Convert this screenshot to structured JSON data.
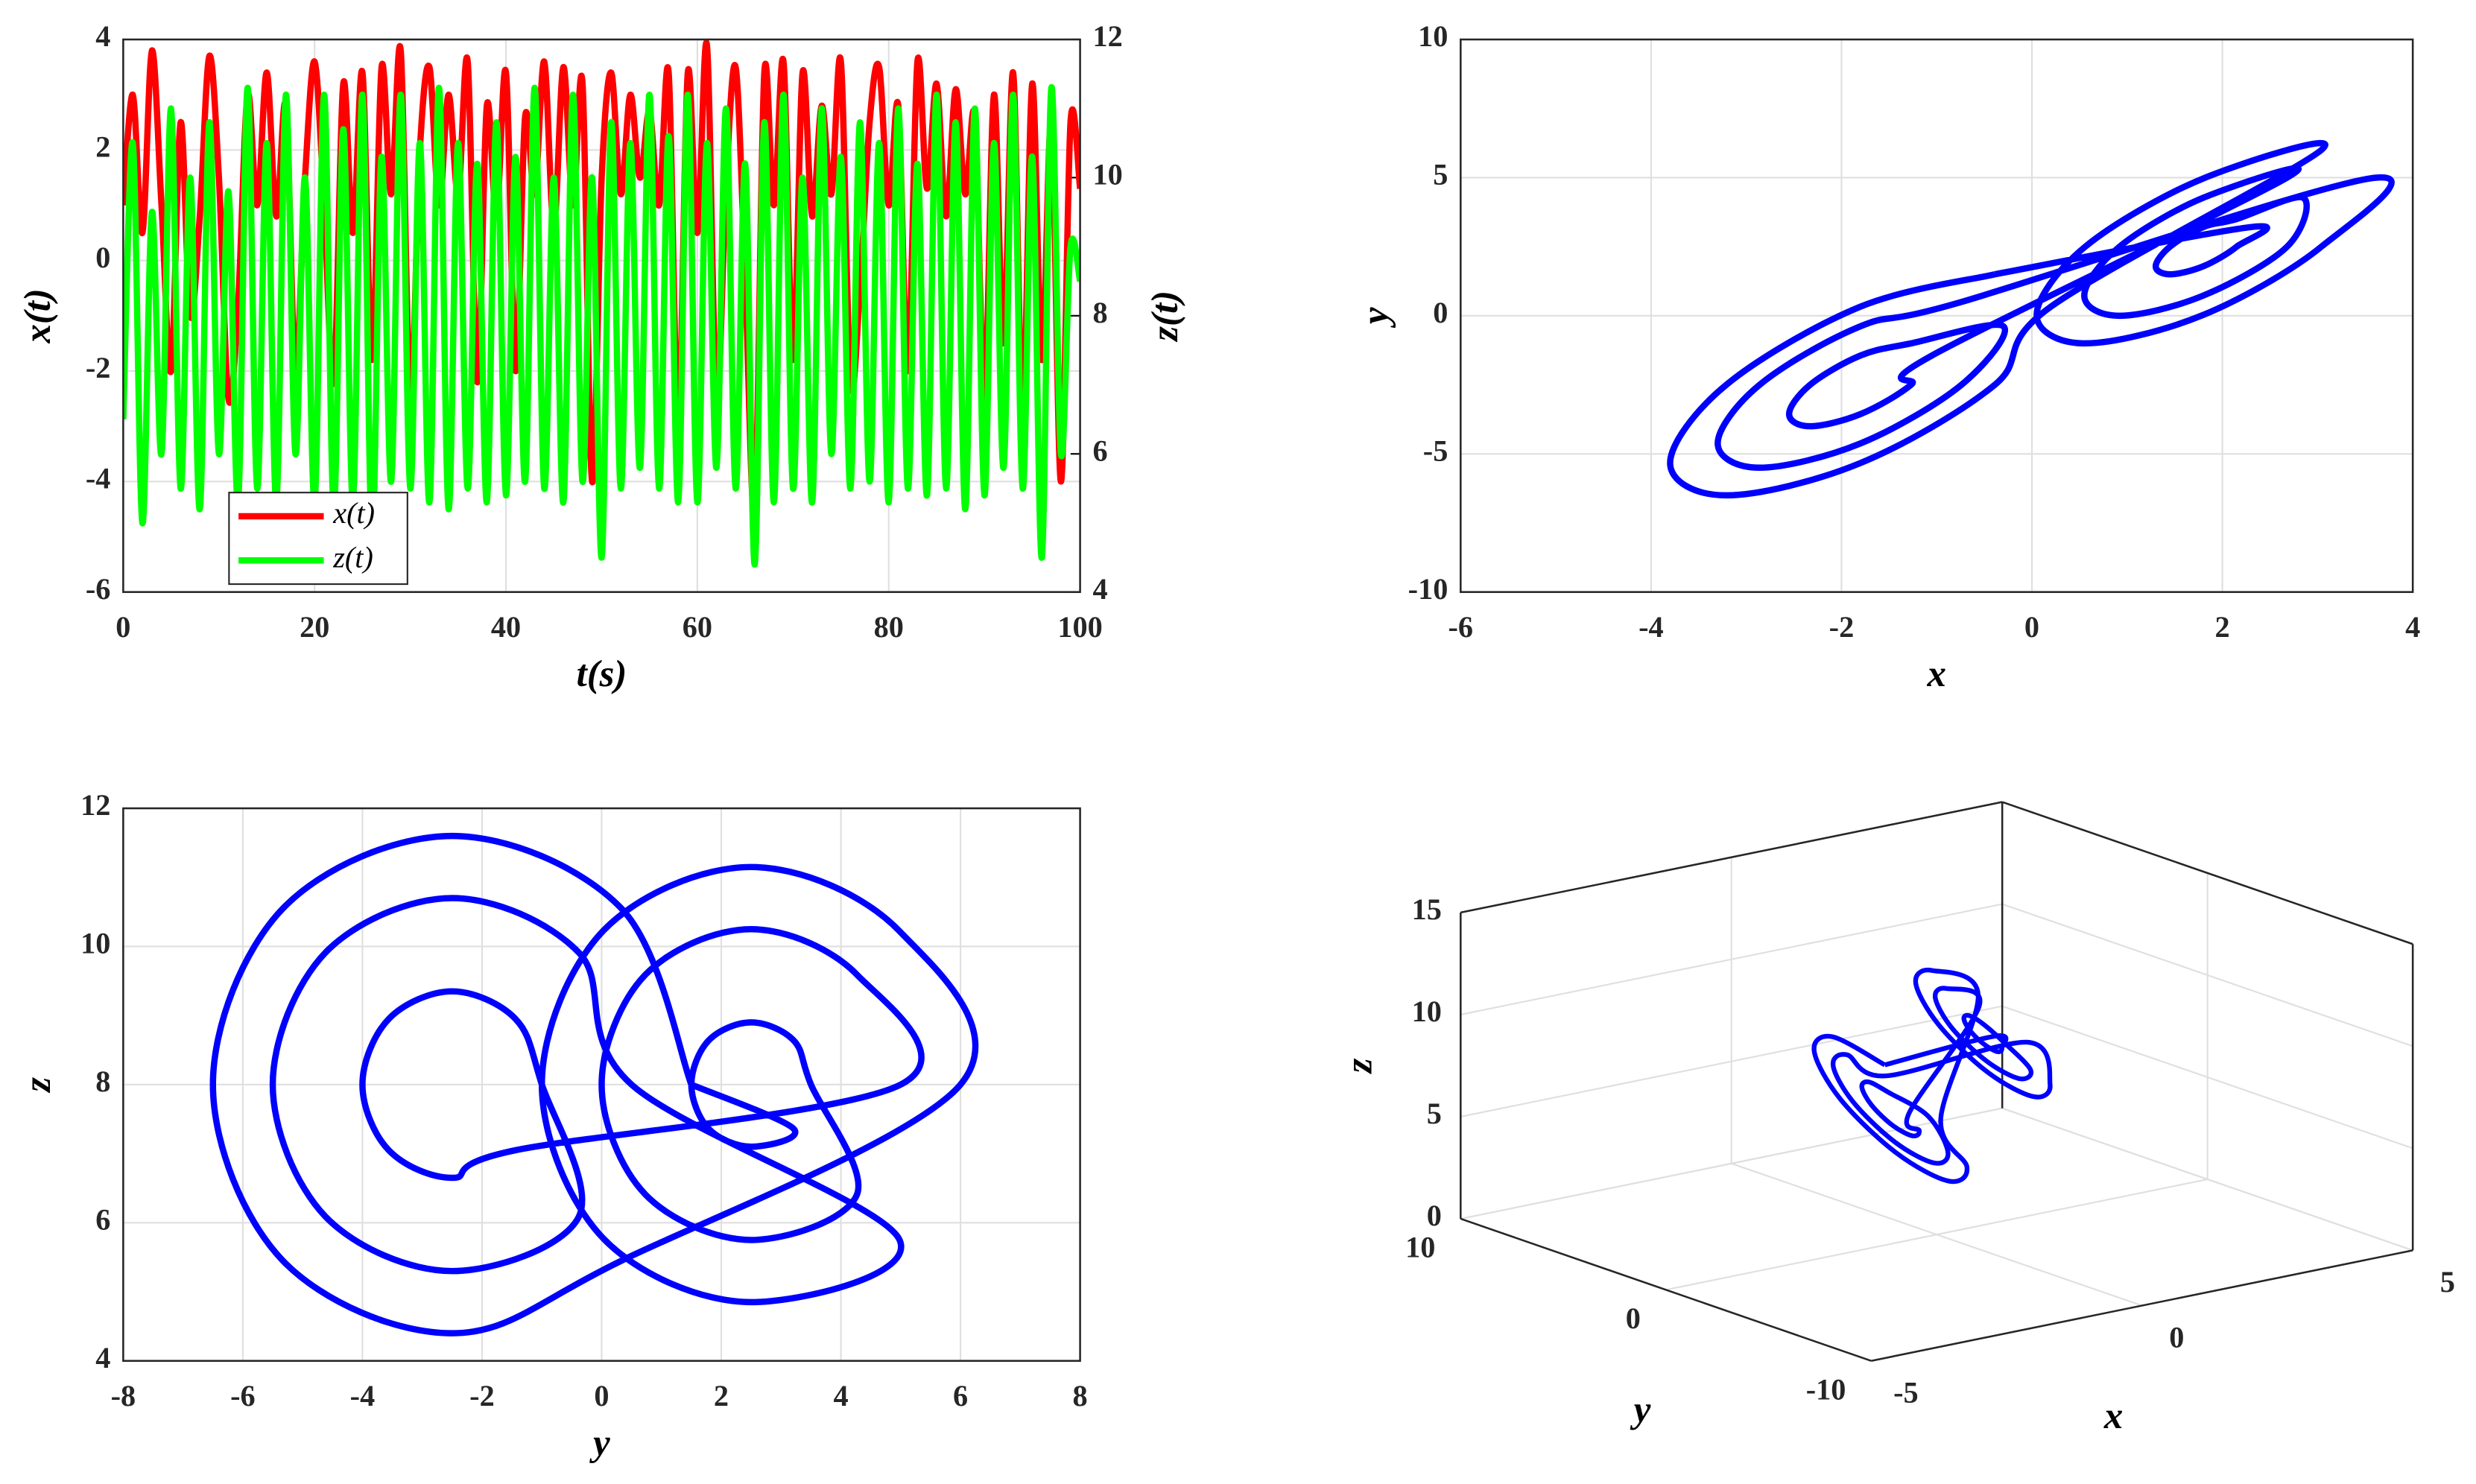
{
  "chart_data": [
    {
      "type": "timeseries",
      "xlabel": "t(s)",
      "ylabel": "x(t)",
      "y2label": "z(t)",
      "xlim": [
        0,
        100
      ],
      "xticks": [
        0,
        20,
        40,
        60,
        80,
        100
      ],
      "ylim": [
        -6,
        4
      ],
      "yticks": [
        -6,
        -4,
        -2,
        0,
        2,
        4
      ],
      "y2lim": [
        4,
        12
      ],
      "y2ticks": [
        4,
        6,
        8,
        10,
        12
      ],
      "grid": true,
      "legend": "lower left",
      "x": [
        0,
        1,
        2,
        3,
        4,
        5,
        6,
        7,
        8,
        9,
        10,
        11,
        12,
        13,
        14,
        15,
        16,
        17,
        18,
        19,
        20,
        21,
        22,
        23,
        24,
        25,
        26,
        27,
        28,
        29,
        30,
        31,
        32,
        33,
        34,
        35,
        36,
        37,
        38,
        39,
        40,
        41,
        42,
        43,
        44,
        45,
        46,
        47,
        48,
        49,
        50,
        51,
        52,
        53,
        54,
        55,
        56,
        57,
        58,
        59,
        60,
        61,
        62,
        63,
        64,
        65,
        66,
        67,
        68,
        69,
        70,
        71,
        72,
        73,
        74,
        75,
        76,
        77,
        78,
        79,
        80,
        81,
        82,
        83,
        84,
        85,
        86,
        87,
        88,
        89,
        90,
        91,
        92,
        93,
        94,
        95,
        96,
        97,
        98,
        99,
        100
      ],
      "series": [
        {
          "name": "x(t)",
          "color": "#ff0000",
          "values": [
            1,
            3,
            0.5,
            3.8,
            1,
            -2,
            2.5,
            -1,
            0.8,
            3.7,
            1.5,
            -2.5,
            -0.8,
            3,
            1,
            3.4,
            0.8,
            2.8,
            -2,
            1.5,
            3.6,
            1,
            -2.2,
            3.2,
            0.5,
            3.4,
            -1.8,
            3.5,
            1.2,
            3.8,
            -2.5,
            2,
            3.5,
            1,
            3,
            1.2,
            3.6,
            -2.2,
            2.8,
            0.8,
            3.4,
            -2,
            2.6,
            1.2,
            3.6,
            0.6,
            3.5,
            1,
            3.2,
            -4,
            1.5,
            3.4,
            1.2,
            3,
            1.5,
            2.7,
            1,
            3.4,
            -3,
            3.4,
            0.5,
            3.9,
            -2.5,
            1.4,
            3.5,
            -0.3,
            -4.5,
            3.4,
            1,
            3.6,
            -1.8,
            3.4,
            0.8,
            2.8,
            1.2,
            3.6,
            -2.2,
            -0.5,
            2.5,
            3.5,
            1,
            2.8,
            -2,
            3.6,
            1.3,
            3.2,
            0.8,
            3.1,
            1.2,
            2.6,
            -2.5,
            3,
            -1.5,
            3.4,
            -2.8,
            3.2,
            -1.8,
            2.5,
            -4,
            2.5,
            1.3
          ]
        },
        {
          "name": "z(t)",
          "color": "#00ff00",
          "axis": "y2",
          "values": [
            6.5,
            10.5,
            5,
            9.5,
            6,
            11,
            5.5,
            10,
            5.2,
            10.8,
            6,
            9.8,
            5.3,
            11.3,
            5.5,
            10.5,
            5.3,
            11.2,
            6,
            10,
            5.3,
            11.2,
            5.2,
            10.7,
            5.3,
            11.2,
            4.8,
            10.3,
            5.6,
            11.2,
            5.5,
            10.5,
            5.3,
            11.3,
            5.2,
            10.5,
            5.5,
            10.2,
            5.3,
            10.8,
            5.4,
            10.3,
            5.6,
            11.3,
            5.5,
            10,
            5.3,
            11.2,
            5.6,
            10,
            4.5,
            10.8,
            5.5,
            10.5,
            5.8,
            11.2,
            5.5,
            10.6,
            5.3,
            11.2,
            5.3,
            10.5,
            5.8,
            11,
            5.5,
            10.2,
            4.4,
            10.8,
            5.3,
            11.2,
            5.5,
            10,
            5.3,
            11,
            6,
            10.3,
            5.5,
            10.8,
            5.6,
            10.5,
            5.3,
            11,
            5.5,
            10.2,
            5.4,
            11.2,
            5.5,
            10.8,
            5.2,
            11,
            5.4,
            10.5,
            5.8,
            11.2,
            5.5,
            10.3,
            4.5,
            11.3,
            6,
            9,
            8.5
          ]
        }
      ]
    },
    {
      "type": "line",
      "xlabel": "x",
      "ylabel": "y",
      "color": "#0000ff",
      "grid": true,
      "xlim": [
        -6,
        4
      ],
      "xticks": [
        -6,
        -4,
        -2,
        0,
        2,
        4
      ],
      "ylim": [
        -10,
        10
      ],
      "yticks": [
        -10,
        -5,
        0,
        5,
        10
      ],
      "x": [
        -0.39,
        -1.8,
        -3.21,
        -3.8,
        -3.21,
        -1.8,
        -0.39,
        0.2,
        3.04,
        1.8,
        0.56,
        0.05,
        0.56,
        1.8,
        3.04,
        3.55,
        -0.74,
        -1.8,
        -2.86,
        -3.3,
        -2.86,
        -1.8,
        -0.74,
        -0.3,
        -1.27,
        -1.8,
        -2.33,
        -2.55,
        -2.33,
        -1.8,
        -1.27,
        -1.05,
        2.68,
        1.8,
        0.92,
        0.55,
        0.92,
        1.8,
        2.68,
        2.85,
        2.15,
        1.8,
        1.45,
        1.3,
        1.45,
        1.8,
        2.15,
        2.3,
        -0.39
      ],
      "values": [
        1.5,
        0.33,
        -2.5,
        -5.33,
        -6.5,
        -5.33,
        -2.5,
        0.33,
        6,
        4.97,
        2.5,
        0.03,
        -1,
        0.03,
        2.5,
        4.97,
        0.5,
        -0.38,
        -2.5,
        -4.62,
        -5.5,
        -4.62,
        -2.5,
        -0.38,
        -1,
        -1.44,
        -2.5,
        -3.56,
        -4,
        -3.56,
        -2.5,
        -1.44,
        5,
        4.27,
        2.5,
        0.73,
        0,
        0.73,
        2.5,
        4.27,
        3.5,
        3.21,
        2.5,
        1.79,
        1.5,
        1.79,
        2.5,
        3.21,
        1.5
      ]
    },
    {
      "type": "line",
      "xlabel": "y",
      "ylabel": "z",
      "color": "#0000ff",
      "grid": true,
      "xlim": [
        -8,
        8
      ],
      "xticks": [
        -8,
        -6,
        -4,
        -2,
        0,
        2,
        4,
        6,
        8
      ],
      "ylim": [
        4,
        12
      ],
      "yticks": [
        4,
        6,
        8,
        10,
        12
      ],
      "x": [
        1.5,
        0.33,
        -2.5,
        -5.33,
        -6.5,
        -5.33,
        -2.5,
        0.33,
        6,
        4.97,
        2.5,
        0.03,
        -1,
        0.03,
        2.5,
        4.97,
        0.5,
        -0.38,
        -2.5,
        -4.62,
        -5.5,
        -4.62,
        -2.5,
        -0.38,
        -1,
        -1.44,
        -2.5,
        -3.56,
        -4,
        -3.56,
        -2.5,
        -1.44,
        5,
        4.27,
        2.5,
        0.73,
        0,
        0.73,
        2.5,
        4.27,
        3.5,
        3.21,
        2.5,
        1.79,
        1.5,
        1.79,
        2.5,
        3.21,
        1.5
      ],
      "values": [
        8,
        10.55,
        11.6,
        10.55,
        8,
        5.45,
        4.4,
        5.45,
        8,
        10.23,
        11.15,
        10.23,
        8,
        5.77,
        4.85,
        5.77,
        8,
        9.91,
        10.7,
        9.91,
        8,
        6.09,
        5.3,
        6.09,
        8,
        8.95,
        9.35,
        8.95,
        8,
        7.05,
        6.65,
        7.05,
        8,
        9.59,
        10.25,
        9.59,
        8,
        6.41,
        5.75,
        6.41,
        8,
        8.64,
        8.9,
        8.64,
        8,
        7.36,
        7.1,
        7.36,
        8
      ]
    },
    {
      "type": "line3d",
      "xlabel": "x",
      "ylabel": "y",
      "zlabel": "z",
      "color": "#0000ff",
      "grid": true,
      "xlim": [
        -5,
        5
      ],
      "xticks": [
        -5,
        0,
        5
      ],
      "ylim": [
        -10,
        10
      ],
      "yticks": [
        -10,
        0,
        10
      ],
      "zlim": [
        0,
        15
      ],
      "zticks": [
        0,
        5,
        10,
        15
      ],
      "x": [
        -0.39,
        -1.8,
        -3.21,
        -3.8,
        -3.21,
        -1.8,
        -0.39,
        0.2,
        3.04,
        1.8,
        0.56,
        0.05,
        0.56,
        1.8,
        3.04,
        3.55,
        -0.74,
        -1.8,
        -2.86,
        -3.3,
        -2.86,
        -1.8,
        -0.74,
        -0.3,
        -1.27,
        -1.8,
        -2.33,
        -2.55,
        -2.33,
        -1.8,
        -1.27,
        -1.05,
        2.68,
        1.8,
        0.92,
        0.55,
        0.92,
        1.8,
        2.68,
        2.85,
        2.15,
        1.8,
        1.45,
        1.3,
        1.45,
        1.8,
        2.15,
        2.3,
        -0.39
      ],
      "y": [
        1.5,
        0.33,
        -2.5,
        -5.33,
        -6.5,
        -5.33,
        -2.5,
        0.33,
        6,
        4.97,
        2.5,
        0.03,
        -1,
        0.03,
        2.5,
        4.97,
        0.5,
        -0.38,
        -2.5,
        -4.62,
        -5.5,
        -4.62,
        -2.5,
        -0.38,
        -1,
        -1.44,
        -2.5,
        -3.56,
        -4,
        -3.56,
        -2.5,
        -1.44,
        5,
        4.27,
        2.5,
        0.73,
        0,
        0.73,
        2.5,
        4.27,
        3.5,
        3.21,
        2.5,
        1.79,
        1.5,
        1.79,
        2.5,
        3.21,
        1.5
      ],
      "z": [
        8,
        10.55,
        11.6,
        10.55,
        8,
        5.45,
        4.4,
        5.45,
        8,
        10.23,
        11.15,
        10.23,
        8,
        5.77,
        4.85,
        5.77,
        8,
        9.91,
        10.7,
        9.91,
        8,
        6.09,
        5.3,
        6.09,
        8,
        8.95,
        9.35,
        8.95,
        8,
        7.05,
        6.65,
        7.05,
        8,
        9.59,
        10.25,
        9.59,
        8,
        6.41,
        5.75,
        6.41,
        8,
        8.64,
        8.9,
        8.64,
        8,
        7.36,
        7.1,
        7.36,
        8
      ]
    }
  ]
}
